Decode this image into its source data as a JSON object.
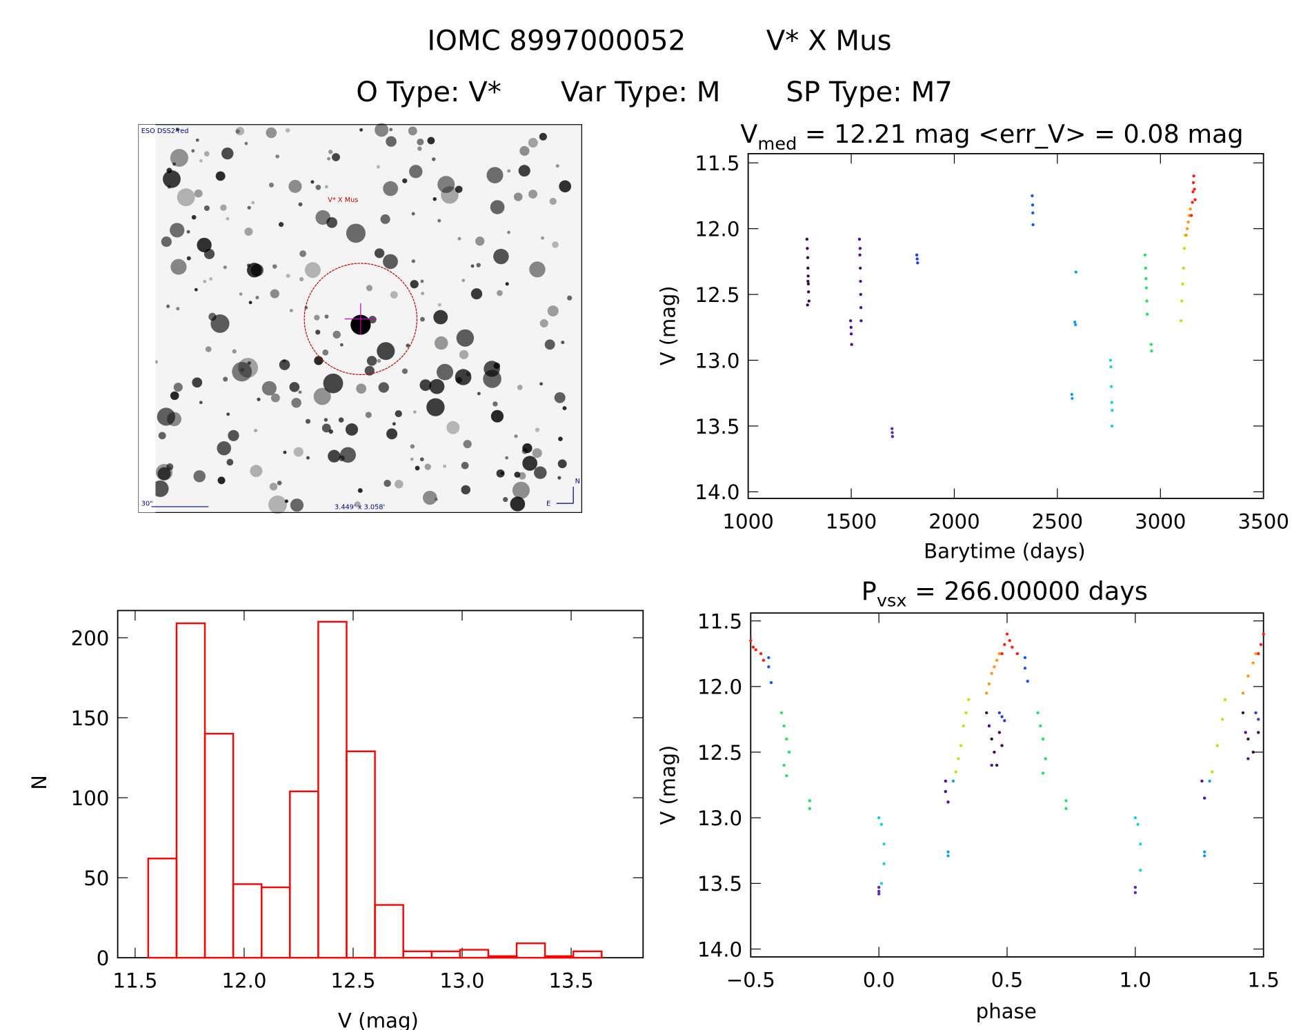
{
  "header": {
    "title_id": "IOMC 8997000052",
    "title_name": "V* X Mus",
    "obj_type": "O Type: V*",
    "var_type": "Var Type: M",
    "sp_type": "SP Type: M7"
  },
  "image": {
    "survey": "ESO DSS2-red",
    "target": "V* X Mus",
    "scale": "30\"",
    "size": "3.449' x 3.058'",
    "north": "N",
    "east": "E"
  },
  "chart_data": [
    {
      "type": "scatter",
      "title": {
        "main": "V",
        "sub": "med",
        "rest": " = 12.21 mag <err_V> = 0.08 mag"
      },
      "x_label": "Barytime (days)",
      "y_label": "V (mag)",
      "xlim": [
        1000,
        3500
      ],
      "xticks": [
        1000,
        1500,
        2000,
        2500,
        3000,
        3500
      ],
      "ylim": [
        11.43,
        14.05
      ],
      "y_inverted": true,
      "yticks": [
        11.5,
        {
          "value": 12,
          "label": "12.0"
        },
        12.5,
        {
          "value": 13,
          "label": "13.0"
        },
        13.5,
        {
          "value": 14,
          "label": "14.0"
        }
      ],
      "series": [
        {
          "color": "#3c0a46",
          "x": [
            1285,
            1287,
            1289,
            1290,
            1291,
            1292,
            1293,
            1295,
            1288,
            1290
          ],
          "values": [
            12.08,
            12.15,
            12.22,
            12.3,
            12.36,
            12.42,
            12.48,
            12.55,
            12.58,
            12.4
          ]
        },
        {
          "color": "#50108a",
          "x": [
            1497,
            1499,
            1500,
            1502,
            1540,
            1542,
            1544,
            1545,
            1546,
            1547,
            1548,
            1543
          ],
          "values": [
            12.7,
            12.75,
            12.8,
            12.88,
            12.08,
            12.2,
            12.3,
            12.4,
            12.5,
            12.6,
            12.7,
            12.15
          ]
        },
        {
          "color": "#5a28b8",
          "x": [
            1698,
            1699,
            1700
          ],
          "values": [
            13.52,
            13.55,
            13.58
          ]
        },
        {
          "color": "#2840d8",
          "x": [
            1818,
            1820,
            1822
          ],
          "values": [
            12.2,
            12.23,
            12.26
          ]
        },
        {
          "color": "#1858e8",
          "x": [
            2378,
            2380,
            2381,
            2382
          ],
          "values": [
            11.75,
            11.82,
            11.88,
            11.97
          ]
        },
        {
          "color": "#189ce8",
          "x": [
            2570,
            2572,
            2585,
            2588,
            2590
          ],
          "values": [
            13.26,
            13.29,
            12.71,
            12.73,
            12.33
          ]
        },
        {
          "color": "#20d0d8",
          "x": [
            2758,
            2760,
            2762,
            2764,
            2766,
            2765
          ],
          "values": [
            13.0,
            13.05,
            13.2,
            13.32,
            13.38,
            13.5
          ]
        },
        {
          "color": "#28e060",
          "x": [
            2925,
            2928,
            2930,
            2932,
            2934,
            2936,
            2955,
            2957
          ],
          "values": [
            12.2,
            12.3,
            12.38,
            12.45,
            12.55,
            12.65,
            12.88,
            12.93
          ]
        },
        {
          "color": "#b0e820",
          "x": [
            3100,
            3104,
            3108,
            3112,
            3116,
            3120
          ],
          "values": [
            12.7,
            12.55,
            12.42,
            12.3,
            12.15,
            12.05
          ]
        },
        {
          "color": "#ff9818",
          "x": [
            3125,
            3130,
            3135,
            3140,
            3145
          ],
          "values": [
            12.05,
            12.0,
            11.95,
            11.9,
            11.85
          ]
        },
        {
          "color": "#ff2010",
          "x": [
            3150,
            3155,
            3158,
            3160,
            3162,
            3165,
            3168
          ],
          "values": [
            11.9,
            11.8,
            11.72,
            11.65,
            11.6,
            11.7,
            11.78
          ]
        }
      ]
    },
    {
      "type": "histogram",
      "x_label": "V (mag)",
      "y_label": "N",
      "color": "#ff0000",
      "bins": [
        11.56,
        11.69,
        11.82,
        11.95,
        12.08,
        12.21,
        12.34,
        12.47,
        12.6,
        12.73,
        12.86,
        12.99,
        13.12,
        13.25,
        13.38,
        13.51,
        13.64
      ],
      "values": [
        62,
        209,
        140,
        46,
        44,
        104,
        210,
        129,
        33,
        4,
        4,
        5,
        1,
        9,
        1,
        4
      ],
      "xlim": [
        11.42,
        13.83
      ],
      "xticks": [
        11.5,
        {
          "value": 12,
          "label": "12.0"
        },
        12.5,
        {
          "value": 13,
          "label": "13.0"
        },
        13.5
      ],
      "ylim": [
        0,
        217
      ],
      "yticks": [
        0,
        50,
        100,
        150,
        200
      ]
    },
    {
      "type": "scatter",
      "title": {
        "main": "P",
        "sub": "vsx",
        "rest": " = 266.00000 days"
      },
      "x_label": "phase",
      "y_label": "V (mag)",
      "xlim": [
        -0.5,
        1.5
      ],
      "xticks": [
        {
          "value": -0.5,
          "label": "−0.5"
        },
        {
          "value": 0,
          "label": "0.0"
        },
        0.5,
        {
          "value": 1,
          "label": "1.0"
        },
        1.5
      ],
      "ylim": [
        11.44,
        14.06
      ],
      "y_inverted": true,
      "yticks": [
        11.5,
        {
          "value": 12,
          "label": "12.0"
        },
        12.5,
        {
          "value": 13,
          "label": "13.0"
        },
        13.5,
        {
          "value": 14,
          "label": "14.0"
        }
      ],
      "series": [
        {
          "color": "#3c0a46",
          "x": [
            0.42,
            0.43,
            0.44,
            0.45,
            0.46,
            0.47,
            0.48,
            1.42,
            1.44,
            1.46,
            1.48
          ],
          "values": [
            12.2,
            12.3,
            12.4,
            12.5,
            12.6,
            12.35,
            12.45,
            12.2,
            12.4,
            12.5,
            12.35
          ]
        },
        {
          "color": "#50108a",
          "x": [
            0.26,
            0.26,
            0.27,
            0.43,
            0.44,
            1.26,
            1.27,
            1.43,
            1.44
          ],
          "values": [
            12.72,
            12.8,
            12.88,
            12.3,
            12.6,
            12.72,
            12.85,
            12.35,
            12.55
          ]
        },
        {
          "color": "#5a28b8",
          "x": [
            0,
            0,
            0,
            1,
            1
          ],
          "values": [
            13.53,
            13.56,
            13.58,
            13.53,
            13.57
          ]
        },
        {
          "color": "#2840d8",
          "x": [
            0.47,
            0.48,
            0.49,
            1.47,
            1.48
          ],
          "values": [
            12.2,
            12.23,
            12.26,
            12.2,
            12.25
          ]
        },
        {
          "color": "#1858e8",
          "x": [
            -0.43,
            -0.43,
            -0.42,
            0.57,
            0.57,
            0.58
          ],
          "values": [
            11.78,
            11.85,
            11.97,
            11.78,
            11.86,
            11.96
          ]
        },
        {
          "color": "#189ce8",
          "x": [
            0.27,
            0.27,
            0.29,
            1.27,
            1.27,
            1.29
          ],
          "values": [
            13.26,
            13.29,
            12.72,
            13.26,
            13.29,
            12.72
          ]
        },
        {
          "color": "#20d0d8",
          "x": [
            0,
            0.01,
            0.02,
            0.02,
            0.01,
            1,
            1.01,
            1.02,
            1.02
          ],
          "values": [
            13.0,
            13.05,
            13.2,
            13.35,
            13.5,
            13.0,
            13.05,
            13.2,
            13.4
          ]
        },
        {
          "color": "#28e060",
          "x": [
            -0.38,
            -0.37,
            -0.36,
            -0.35,
            -0.37,
            -0.36,
            0.62,
            0.63,
            0.64,
            0.65,
            0.64,
            -0.27,
            -0.27,
            0.73,
            0.73
          ],
          "values": [
            12.2,
            12.3,
            12.4,
            12.5,
            12.6,
            12.68,
            12.2,
            12.3,
            12.4,
            12.55,
            12.66,
            12.87,
            12.93,
            12.87,
            12.93
          ]
        },
        {
          "color": "#b0e820",
          "x": [
            0.3,
            0.31,
            0.32,
            0.33,
            0.34,
            0.35,
            1.3,
            1.32,
            1.34,
            1.35
          ],
          "values": [
            12.65,
            12.55,
            12.45,
            12.3,
            12.2,
            12.1,
            12.65,
            12.45,
            12.25,
            12.1
          ]
        },
        {
          "color": "#ff9818",
          "x": [
            0.42,
            0.43,
            0.44,
            0.45,
            0.46,
            0.47,
            1.42,
            1.44,
            1.46,
            1.47
          ],
          "values": [
            12.05,
            11.98,
            11.9,
            11.85,
            11.8,
            11.75,
            12.05,
            11.92,
            11.82,
            11.75
          ]
        },
        {
          "color": "#ff2010",
          "x": [
            -0.5,
            -0.49,
            -0.48,
            -0.46,
            -0.45,
            0.48,
            0.49,
            0.5,
            0.51,
            0.52,
            0.54,
            1.48,
            1.49,
            1.5
          ],
          "values": [
            11.65,
            11.7,
            11.72,
            11.75,
            11.8,
            11.75,
            11.68,
            11.6,
            11.65,
            11.7,
            11.75,
            11.75,
            11.68,
            11.6
          ]
        }
      ]
    }
  ]
}
